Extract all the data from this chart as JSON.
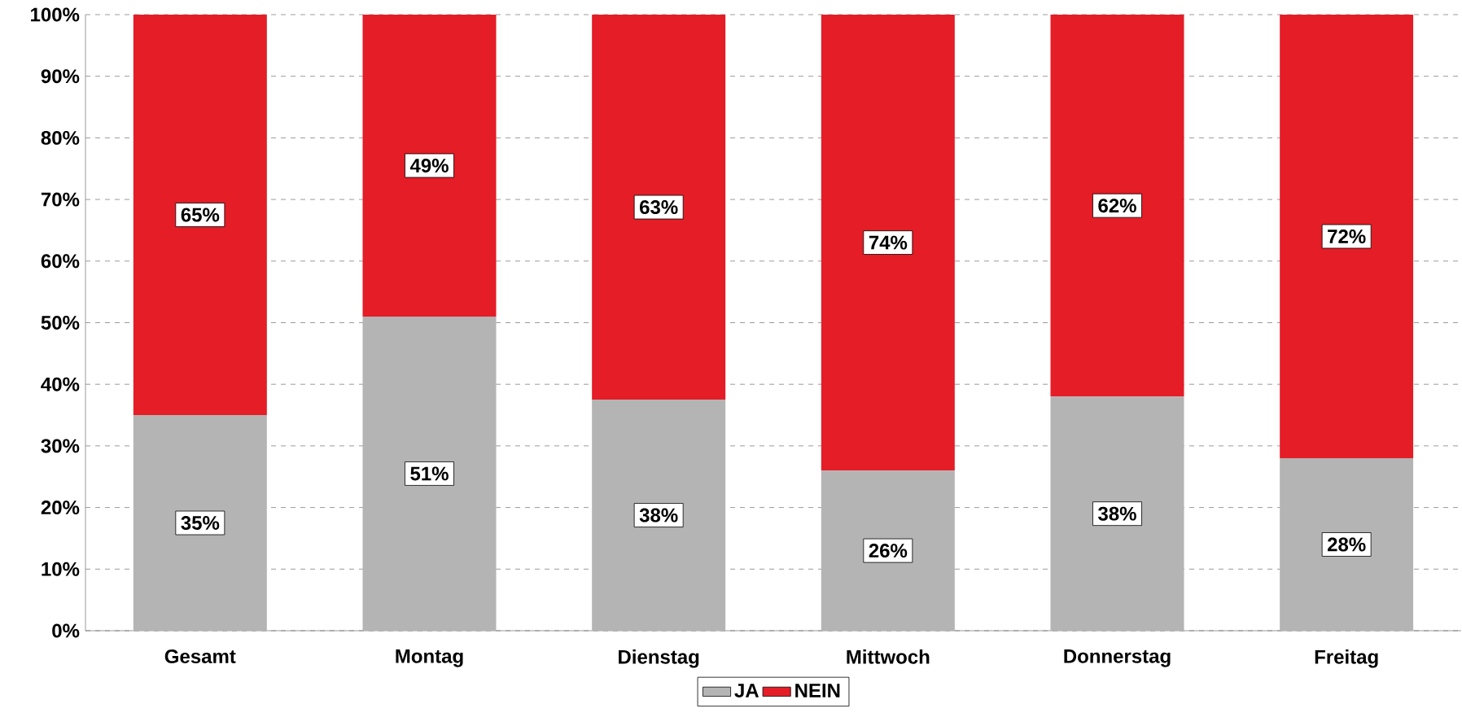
{
  "chart_data": {
    "type": "bar",
    "stacked": true,
    "categories": [
      "Gesamt",
      "Montag",
      "Dienstag",
      "Mittwoch",
      "Donnerstag",
      "Freitag"
    ],
    "series": [
      {
        "name": "JA",
        "color": "#b4b4b4",
        "values": [
          35,
          51,
          37.5,
          26,
          38,
          28
        ],
        "value_labels": [
          "35%",
          "51%",
          "38%",
          "26%",
          "38%",
          "28%"
        ]
      },
      {
        "name": "NEIN",
        "color": "#e41d27",
        "values": [
          65,
          49,
          62.5,
          74,
          62,
          72
        ],
        "value_labels": [
          "65%",
          "49%",
          "63%",
          "74%",
          "62%",
          "72%"
        ]
      }
    ],
    "ylim": [
      0,
      100
    ],
    "yticks": [
      {
        "value": 0,
        "label": "0%"
      },
      {
        "value": 10,
        "label": "10%"
      },
      {
        "value": 20,
        "label": "20%"
      },
      {
        "value": 30,
        "label": "30%"
      },
      {
        "value": 40,
        "label": "40%"
      },
      {
        "value": 50,
        "label": "50%"
      },
      {
        "value": 60,
        "label": "60%"
      },
      {
        "value": 70,
        "label": "70%"
      },
      {
        "value": 80,
        "label": "80%"
      },
      {
        "value": 90,
        "label": "90%"
      },
      {
        "value": 100,
        "label": "100%"
      }
    ],
    "grid": "y",
    "legend": "bottom"
  }
}
